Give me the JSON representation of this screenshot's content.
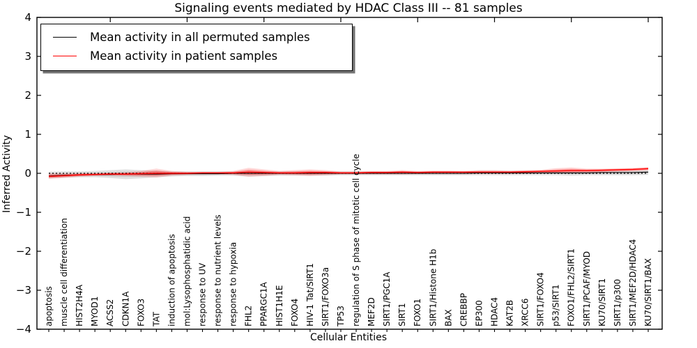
{
  "chart_data": {
    "type": "line",
    "title": "Signaling events mediated by HDAC Class III -- 81 samples",
    "xlabel": "Cellular Entities",
    "ylabel": "Inferred Activity",
    "ylim": [
      -4,
      4
    ],
    "yticks": [
      4,
      3,
      2,
      1,
      0,
      -1,
      -2,
      -3,
      -4
    ],
    "xticks_top": [
      5,
      10,
      15,
      20,
      25,
      30,
      35,
      40
    ],
    "grid": false,
    "legend_position": "upper left",
    "zero_line": 0,
    "categories": [
      "apoptosis",
      "muscle cell differentiation",
      "HIST2H4A",
      "MYOD1",
      "ACSS2",
      "CDKN1A",
      "FOXO3",
      "TAT",
      "induction of apoptosis",
      "mol:Lysophosphatidic acid",
      "response to UV",
      "response to nutrient levels",
      "response to hypoxia",
      "FHL2",
      "PPARGC1A",
      "HIST1H1E",
      "FOXO4",
      "HIV-1 Tat/SIRT1",
      "SIRT1/FOXO3a",
      "TP53",
      "regulation of S phase of mitotic cell cycle",
      "MEF2D",
      "SIRT1/PGC1A",
      "SIRT1",
      "FOXO1",
      "SIRT1/Histone H1b",
      "BAX",
      "CREBBP",
      "EP300",
      "HDAC4",
      "KAT2B",
      "XRCC6",
      "SIRT1/FOXO4",
      "p53/SIRT1",
      "FOXO1/FHL2/SIRT1",
      "SIRT1/PCAF/MYOD",
      "KU70/SIRT1",
      "SIRT1/p300",
      "SIRT1/MEF2D/HDAC4",
      "KU70/SIRT1/BAX"
    ],
    "series": [
      {
        "name": "Mean activity in all permuted samples",
        "color": "#000000",
        "values": [
          -0.07,
          -0.05,
          -0.04,
          -0.03,
          -0.03,
          -0.02,
          -0.02,
          -0.02,
          -0.01,
          -0.01,
          -0.01,
          -0.01,
          0.0,
          0.0,
          0.0,
          0.0,
          0.0,
          0.0,
          0.0,
          0.0,
          0.0,
          0.0,
          0.0,
          0.0,
          0.0,
          0.0,
          0.0,
          0.0,
          0.01,
          0.01,
          0.01,
          0.01,
          0.01,
          0.01,
          0.01,
          0.01,
          0.02,
          0.02,
          0.02,
          0.03
        ]
      },
      {
        "name": "Mean activity in patient samples",
        "color": "#ff0000",
        "values": [
          -0.08,
          -0.06,
          -0.04,
          -0.03,
          -0.02,
          -0.02,
          -0.01,
          0.0,
          0.0,
          0.0,
          0.01,
          0.01,
          0.01,
          0.03,
          0.02,
          0.01,
          0.01,
          0.02,
          0.02,
          0.01,
          0.01,
          0.02,
          0.02,
          0.03,
          0.02,
          0.03,
          0.03,
          0.03,
          0.03,
          0.03,
          0.03,
          0.04,
          0.05,
          0.06,
          0.07,
          0.07,
          0.08,
          0.09,
          0.1,
          0.12
        ]
      }
    ],
    "bands": [
      {
        "name": "permuted samples spread",
        "color": "#c9c9c9",
        "upper": [
          0.04,
          0.05,
          0.05,
          0.06,
          0.08,
          0.1,
          0.08,
          0.07,
          0.05,
          0.05,
          0.05,
          0.05,
          0.05,
          0.06,
          0.05,
          0.05,
          0.05,
          0.05,
          0.05,
          0.05,
          0.05,
          0.05,
          0.05,
          0.05,
          0.05,
          0.05,
          0.05,
          0.05,
          0.06,
          0.06,
          0.06,
          0.06,
          0.06,
          0.06,
          0.06,
          0.06,
          0.06,
          0.07,
          0.07,
          0.08
        ],
        "lower": [
          -0.13,
          -0.11,
          -0.1,
          -0.1,
          -0.12,
          -0.15,
          -0.13,
          -0.1,
          -0.08,
          -0.07,
          -0.07,
          -0.06,
          -0.06,
          -0.08,
          -0.07,
          -0.06,
          -0.06,
          -0.06,
          -0.06,
          -0.05,
          -0.05,
          -0.05,
          -0.05,
          -0.05,
          -0.05,
          -0.05,
          -0.05,
          -0.05,
          -0.05,
          -0.05,
          -0.05,
          -0.05,
          -0.05,
          -0.05,
          -0.06,
          -0.05,
          -0.05,
          -0.05,
          -0.05,
          -0.04
        ]
      },
      {
        "name": "patient samples spread",
        "color": "#ff0000",
        "upper": [
          0.0,
          0.0,
          0.01,
          0.01,
          0.02,
          0.03,
          0.06,
          0.12,
          0.06,
          0.04,
          0.04,
          0.04,
          0.06,
          0.14,
          0.1,
          0.06,
          0.08,
          0.1,
          0.08,
          0.05,
          0.05,
          0.06,
          0.06,
          0.08,
          0.06,
          0.07,
          0.07,
          0.06,
          0.08,
          0.08,
          0.07,
          0.08,
          0.09,
          0.13,
          0.15,
          0.12,
          0.12,
          0.13,
          0.14,
          0.16
        ],
        "lower": [
          -0.14,
          -0.12,
          -0.09,
          -0.07,
          -0.06,
          -0.07,
          -0.09,
          -0.11,
          -0.06,
          -0.04,
          -0.03,
          -0.03,
          -0.04,
          -0.09,
          -0.07,
          -0.04,
          -0.05,
          -0.07,
          -0.05,
          -0.03,
          -0.03,
          -0.03,
          -0.03,
          -0.03,
          -0.02,
          -0.02,
          -0.02,
          -0.02,
          -0.02,
          -0.02,
          -0.02,
          -0.01,
          0.0,
          0.0,
          0.0,
          0.01,
          0.02,
          0.04,
          0.05,
          0.07
        ]
      }
    ]
  }
}
